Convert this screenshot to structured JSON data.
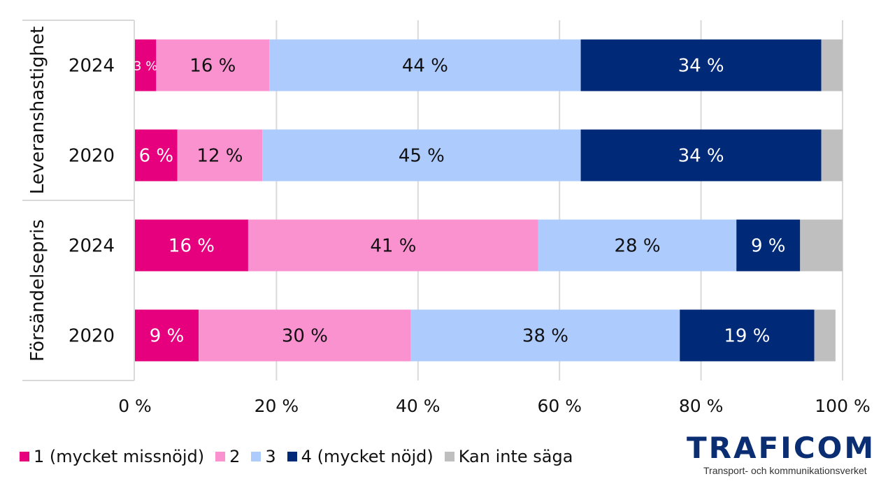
{
  "chart_data": {
    "type": "bar",
    "orientation": "horizontal",
    "stacked": true,
    "xlim": [
      0,
      100
    ],
    "x_ticks": [
      "0 %",
      "20 %",
      "40 %",
      "60 %",
      "80 %",
      "100 %"
    ],
    "grid": "vertical",
    "legend_position": "bottom",
    "groups": [
      {
        "name": "Leveranshastighet",
        "categories": [
          "2024",
          "2020"
        ]
      },
      {
        "name": "Försändelsepris",
        "categories": [
          "2024",
          "2020"
        ]
      }
    ],
    "categories": [
      "Leveranshastighet 2024",
      "Leveranshastighet 2020",
      "Försändelsepris 2024",
      "Försändelsepris 2020"
    ],
    "series": [
      {
        "name": "1 (mycket missnöjd)",
        "color": "#e6007e",
        "label_color": "#ffffff",
        "values": [
          3,
          6,
          16,
          9
        ],
        "labels": [
          "3 %",
          "6 %",
          "16 %",
          "9 %"
        ]
      },
      {
        "name": "2",
        "color": "#fb92d0",
        "label_color": "#111111",
        "values": [
          16,
          12,
          41,
          30
        ],
        "labels": [
          "16 %",
          "12 %",
          "41 %",
          "30 %"
        ]
      },
      {
        "name": "3",
        "color": "#aecbfd",
        "label_color": "#111111",
        "values": [
          44,
          45,
          28,
          38
        ],
        "labels": [
          "44 %",
          "45 %",
          "28 %",
          "38 %"
        ]
      },
      {
        "name": "4 (mycket nöjd)",
        "color": "#002a78",
        "label_color": "#ffffff",
        "values": [
          34,
          34,
          9,
          19
        ],
        "labels": [
          "34 %",
          "34 %",
          "9 %",
          "19 %"
        ]
      },
      {
        "name": "Kan inte säga",
        "color": "#bfbfbf",
        "label_color": "#111111",
        "values": [
          3,
          3.5,
          6,
          3
        ],
        "labels": [
          "",
          "",
          "",
          ""
        ]
      }
    ]
  },
  "logo": {
    "word": "TRAFICOM",
    "subtitle": "Transport- och kommunikationsverket"
  }
}
